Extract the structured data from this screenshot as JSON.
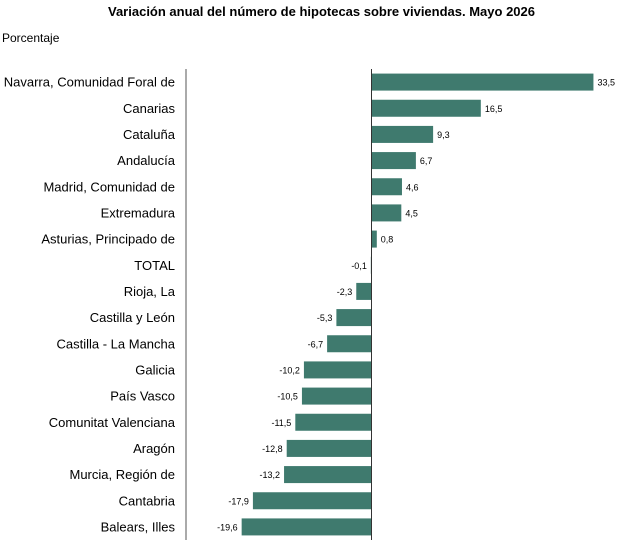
{
  "chart_data": {
    "type": "bar",
    "orientation": "horizontal",
    "title": "Variación anual del número de hipotecas sobre viviendas. Mayo 2026",
    "subtitle": "Porcentaje",
    "categories": [
      "Navarra, Comunidad Foral de",
      "Canarias",
      "Cataluña",
      "Andalucía",
      "Madrid, Comunidad de",
      "Extremadura",
      "Asturias, Principado de",
      "TOTAL",
      "Rioja, La",
      "Castilla y León",
      "Castilla - La Mancha",
      "Galicia",
      "País Vasco",
      "Comunitat Valenciana",
      "Aragón",
      "Murcia, Región de",
      "Cantabria",
      "Balears, Illes"
    ],
    "values": [
      33.5,
      16.5,
      9.3,
      6.7,
      4.6,
      4.5,
      0.8,
      -0.1,
      -2.3,
      -5.3,
      -6.7,
      -10.2,
      -10.5,
      -11.5,
      -12.8,
      -13.2,
      -17.9,
      -19.6
    ],
    "value_labels": [
      "33,5",
      "16,5",
      "9,3",
      "6,7",
      "4,6",
      "4,5",
      "0,8",
      "-0,1",
      "-2,3",
      "-5,3",
      "-6,7",
      "-10,2",
      "-10,5",
      "-11,5",
      "-12,8",
      "-13,2",
      "-17,9",
      "-19,6"
    ],
    "xlim": [
      -28,
      36
    ],
    "grid": false,
    "legend": "none",
    "bar_color": "#3f7a6e"
  }
}
